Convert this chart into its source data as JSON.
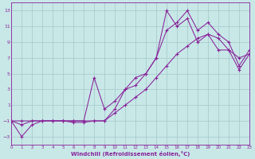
{
  "background_color": "#c8e8e8",
  "grid_color": "#a8cccc",
  "line_color": "#882299",
  "xlabel": "Windchill (Refroidissement éolien,°C)",
  "xlim": [
    0,
    23
  ],
  "ylim": [
    -4,
    14
  ],
  "yticks": [
    -3,
    -1,
    1,
    3,
    5,
    7,
    9,
    11,
    13
  ],
  "xticks": [
    0,
    1,
    2,
    3,
    4,
    5,
    6,
    7,
    8,
    9,
    10,
    11,
    12,
    13,
    14,
    15,
    16,
    17,
    18,
    19,
    20,
    21,
    22,
    23
  ],
  "line1_x": [
    0,
    1,
    2,
    3,
    4,
    5,
    6,
    7,
    8,
    9,
    10,
    11,
    12,
    13,
    14,
    15,
    16,
    17,
    18,
    19,
    20,
    21,
    22,
    23
  ],
  "line1_y": [
    -1,
    -3,
    -1.5,
    -1,
    -1,
    -1,
    -1.2,
    -1.2,
    -1,
    -1,
    0.5,
    3,
    3.5,
    5,
    7,
    10.5,
    11.5,
    13,
    10.5,
    11.5,
    10,
    9,
    6,
    8
  ],
  "line2_x": [
    0,
    1,
    2,
    3,
    4,
    5,
    6,
    7,
    8,
    9,
    10,
    11,
    12,
    13,
    14,
    15,
    16,
    17,
    18,
    19,
    20,
    21,
    22,
    23
  ],
  "line2_y": [
    -1,
    -1.5,
    -1,
    -1,
    -1,
    -1,
    -1,
    -1,
    4.5,
    0.5,
    1.5,
    3,
    4.5,
    5,
    7,
    13,
    11,
    12,
    9,
    10,
    8,
    8,
    5.5,
    7.5
  ],
  "line3_x": [
    0,
    1,
    2,
    3,
    4,
    5,
    6,
    7,
    8,
    9,
    10,
    11,
    12,
    13,
    14,
    15,
    16,
    17,
    18,
    19,
    20,
    21,
    22,
    23
  ],
  "line3_y": [
    -1,
    -1,
    -1,
    -1,
    -1,
    -1,
    -1,
    -1,
    -1,
    -1,
    0,
    1,
    2,
    3,
    4.5,
    6,
    7.5,
    8.5,
    9.5,
    10,
    9.5,
    8,
    7,
    7.5
  ]
}
